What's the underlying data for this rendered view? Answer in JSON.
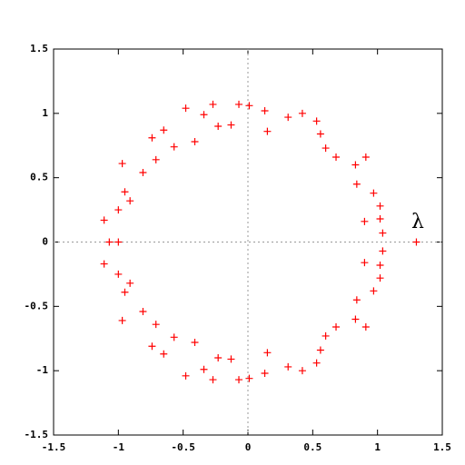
{
  "chart_data": {
    "type": "scatter",
    "color": "#ff0000",
    "annotation": "λ",
    "xlim": [
      -1.5,
      1.5
    ],
    "ylim": [
      -1.5,
      1.5
    ],
    "xticks": [
      -1.5,
      -1,
      -0.5,
      0,
      0.5,
      1,
      1.5
    ],
    "yticks": [
      -1.5,
      -1,
      -0.5,
      0,
      0.5,
      1,
      1.5
    ],
    "x": [
      -0.48,
      -0.27,
      -0.07,
      0.01,
      0.13,
      0.31,
      0.42,
      0.53,
      0.56,
      0.6,
      0.68,
      0.83,
      0.91,
      0.84,
      0.97,
      1.02,
      1.02,
      0.9,
      1.04,
      0.15,
      -0.13,
      -0.23,
      -0.34,
      -0.41,
      -0.57,
      -0.74,
      -0.65,
      -0.71,
      -0.81,
      -0.97,
      -0.95,
      -0.91,
      -1.0,
      -1.11,
      -0.48,
      -0.27,
      -0.07,
      0.01,
      0.13,
      0.31,
      0.42,
      0.53,
      0.56,
      0.6,
      0.68,
      0.83,
      0.91,
      0.84,
      0.97,
      1.02,
      1.02,
      0.9,
      1.04,
      0.15,
      -0.13,
      -0.23,
      -0.34,
      -0.41,
      -0.57,
      -0.74,
      -0.65,
      -0.71,
      -0.81,
      -0.97,
      -0.95,
      -0.91,
      -1.0,
      -1.11,
      -1.07,
      -1.0,
      1.3
    ],
    "y": [
      1.04,
      1.07,
      1.07,
      1.06,
      1.02,
      0.97,
      1.0,
      0.94,
      0.84,
      0.73,
      0.66,
      0.6,
      0.66,
      0.45,
      0.38,
      0.28,
      0.18,
      0.16,
      0.07,
      0.86,
      0.91,
      0.9,
      0.99,
      0.78,
      0.74,
      0.81,
      0.87,
      0.64,
      0.54,
      0.61,
      0.39,
      0.32,
      0.25,
      0.17,
      -1.04,
      -1.07,
      -1.07,
      -1.06,
      -1.02,
      -0.97,
      -1.0,
      -0.94,
      -0.84,
      -0.73,
      -0.66,
      -0.6,
      -0.66,
      -0.45,
      -0.38,
      -0.28,
      -0.18,
      -0.16,
      -0.07,
      -0.86,
      -0.91,
      -0.9,
      -0.99,
      -0.78,
      -0.74,
      -0.81,
      -0.87,
      -0.64,
      -0.54,
      -0.61,
      -0.39,
      -0.32,
      -0.25,
      -0.17,
      0,
      0,
      0
    ]
  }
}
